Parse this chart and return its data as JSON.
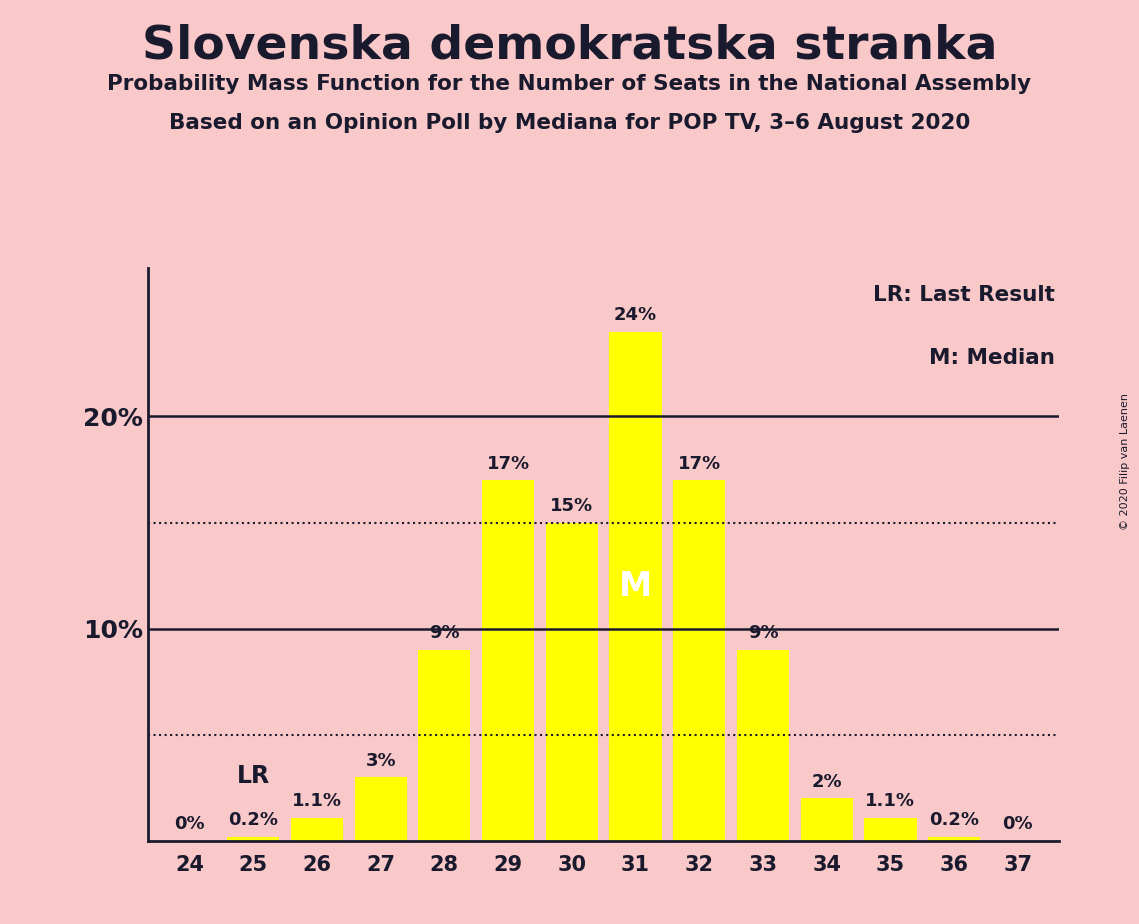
{
  "title": "Slovenska demokratska stranka",
  "subtitle1": "Probability Mass Function for the Number of Seats in the National Assembly",
  "subtitle2": "Based on an Opinion Poll by Mediana for POP TV, 3–6 August 2020",
  "copyright": "© 2020 Filip van Laenen",
  "seats": [
    24,
    25,
    26,
    27,
    28,
    29,
    30,
    31,
    32,
    33,
    34,
    35,
    36,
    37
  ],
  "probabilities": [
    0.0,
    0.2,
    1.1,
    3.0,
    9.0,
    17.0,
    15.0,
    24.0,
    17.0,
    9.0,
    2.0,
    1.1,
    0.2,
    0.0
  ],
  "bar_color": "#FFFF00",
  "background_color": "#F9C8C8",
  "text_color": "#1a1a2e",
  "lr_seat": 25,
  "median_seat": 31,
  "solid_gridlines": [
    10.0,
    20.0
  ],
  "dotted_gridlines": [
    5.0,
    15.0
  ],
  "ylim": [
    0,
    27
  ],
  "legend_lr": "LR: Last Result",
  "legend_m": "M: Median",
  "bar_width": 0.82
}
